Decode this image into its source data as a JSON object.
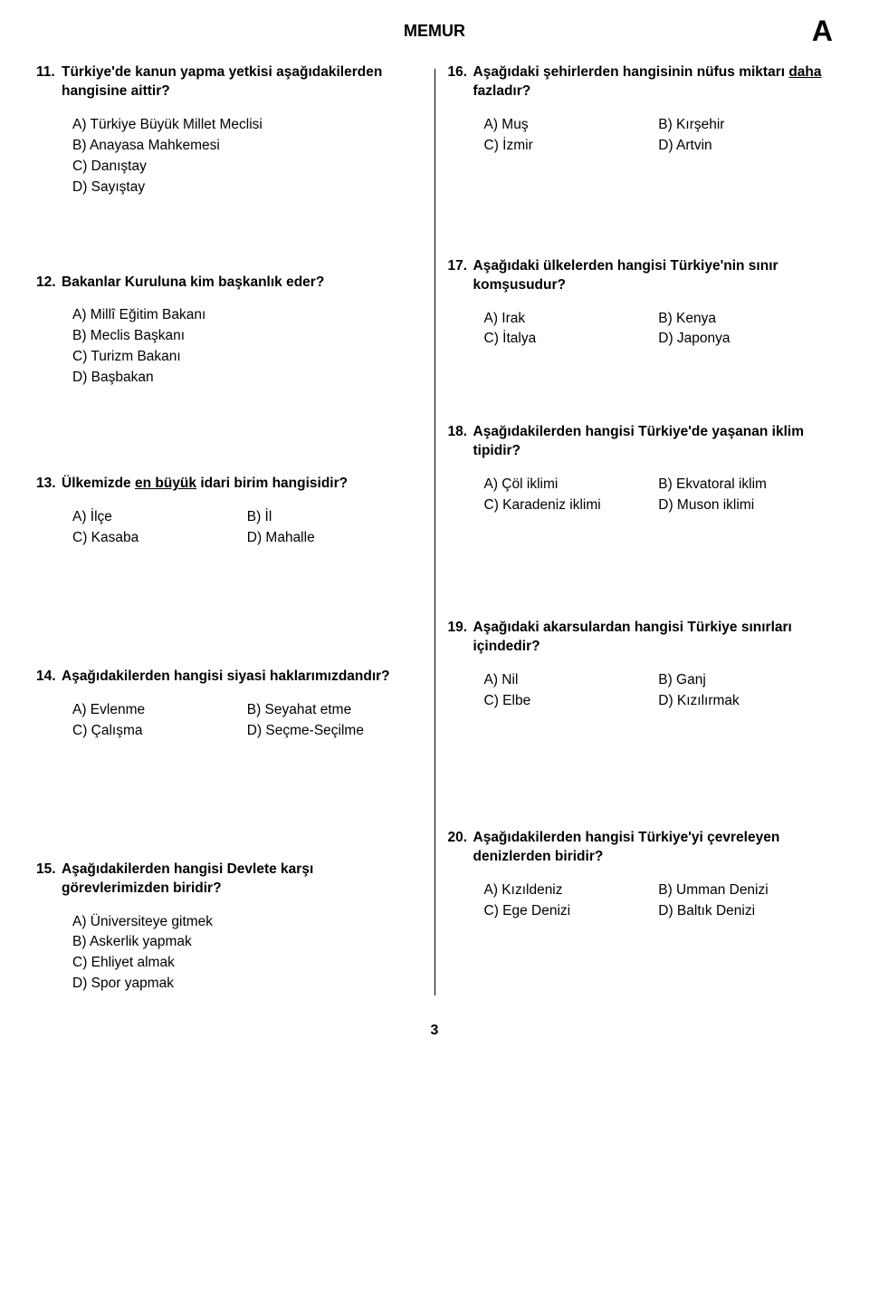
{
  "header": {
    "title": "MEMUR",
    "letter": "A"
  },
  "page_number": "3",
  "left": [
    {
      "num": "11.",
      "text": "Türkiye'de kanun yapma yetkisi aşağıdakilerden hangisine aittir?",
      "opts_layout": "list",
      "opts": [
        "A) Türkiye Büyük Millet Meclisi",
        "B) Anayasa Mahkemesi",
        "C) Danıştay",
        "D) Sayıştay"
      ],
      "gap_after": 84
    },
    {
      "num": "12.",
      "text": "Bakanlar Kuruluna kim başkanlık eder?",
      "opts_layout": "list",
      "opts": [
        "A) Millî Eğitim Bakanı",
        "B) Meclis Başkanı",
        "C) Turizm Bakanı",
        "D) Başbakan"
      ],
      "gap_after": 96
    },
    {
      "num": "13.",
      "text_html": "Ülkemizde <span class=\"u\">en büyük</span> idari birim hangisidir?",
      "opts_layout": "2col",
      "opts": [
        "A) İlçe",
        "B) İl",
        "C) Kasaba",
        "D) Mahalle"
      ],
      "gap_after": 130
    },
    {
      "num": "14.",
      "text": "Aşağıdakilerden hangisi siyasi haklarımızdandır?",
      "opts_layout": "2col",
      "opts": [
        "A) Evlenme",
        "B) Seyahat etme",
        "C) Çalışma",
        "D) Seçme-Seçilme"
      ],
      "gap_after": 130
    },
    {
      "num": "15.",
      "text": "Aşağıdakilerden hangisi Devlete karşı görevlerimizden biridir?",
      "opts_layout": "list",
      "opts": [
        "A) Üniversiteye gitmek",
        "B) Askerlik yapmak",
        "C) Ehliyet almak",
        "D) Spor yapmak"
      ],
      "gap_after": 0
    }
  ],
  "right": [
    {
      "num": "16.",
      "text_html": "Aşağıdaki şehirlerden hangisinin nüfus miktarı <span class=\"u\">daha</span> fazladır?",
      "opts_layout": "2col",
      "opts": [
        "A) Muş",
        "B) Kırşehir",
        "C) İzmir",
        "D) Artvin"
      ],
      "gap_after": 110
    },
    {
      "num": "17.",
      "text": "Aşağıdaki ülkelerden hangisi Türkiye'nin sınır komşusudur?",
      "opts_layout": "2col",
      "opts": [
        "A) Irak",
        "B) Kenya",
        "C) İtalya",
        "D) Japonya"
      ],
      "gap_after": 80
    },
    {
      "num": "18.",
      "text": "Aşağıdakilerden hangisi Türkiye'de yaşanan iklim tipidir?",
      "opts_layout": "2col",
      "opts": [
        "A) Çöl iklimi",
        "B) Ekvatoral iklim",
        "C) Karadeniz iklimi",
        "D) Muson iklimi"
      ],
      "gap_after": 112
    },
    {
      "num": "19.",
      "text": "Aşağıdaki akarsulardan hangisi Türkiye sınırları içindedir?",
      "opts_layout": "2col",
      "opts": [
        "A) Nil",
        "B) Ganj",
        "C) Elbe",
        "D) Kızılırmak"
      ],
      "gap_after": 128
    },
    {
      "num": "20.",
      "text": "Aşağıdakilerden hangisi Türkiye'yi çevreleyen denizlerden biridir?",
      "opts_layout": "2col",
      "opts": [
        "A) Kızıldeniz",
        "B) Umman Denizi",
        "C) Ege Denizi",
        "D) Baltık Denizi"
      ],
      "gap_after": 0
    }
  ]
}
